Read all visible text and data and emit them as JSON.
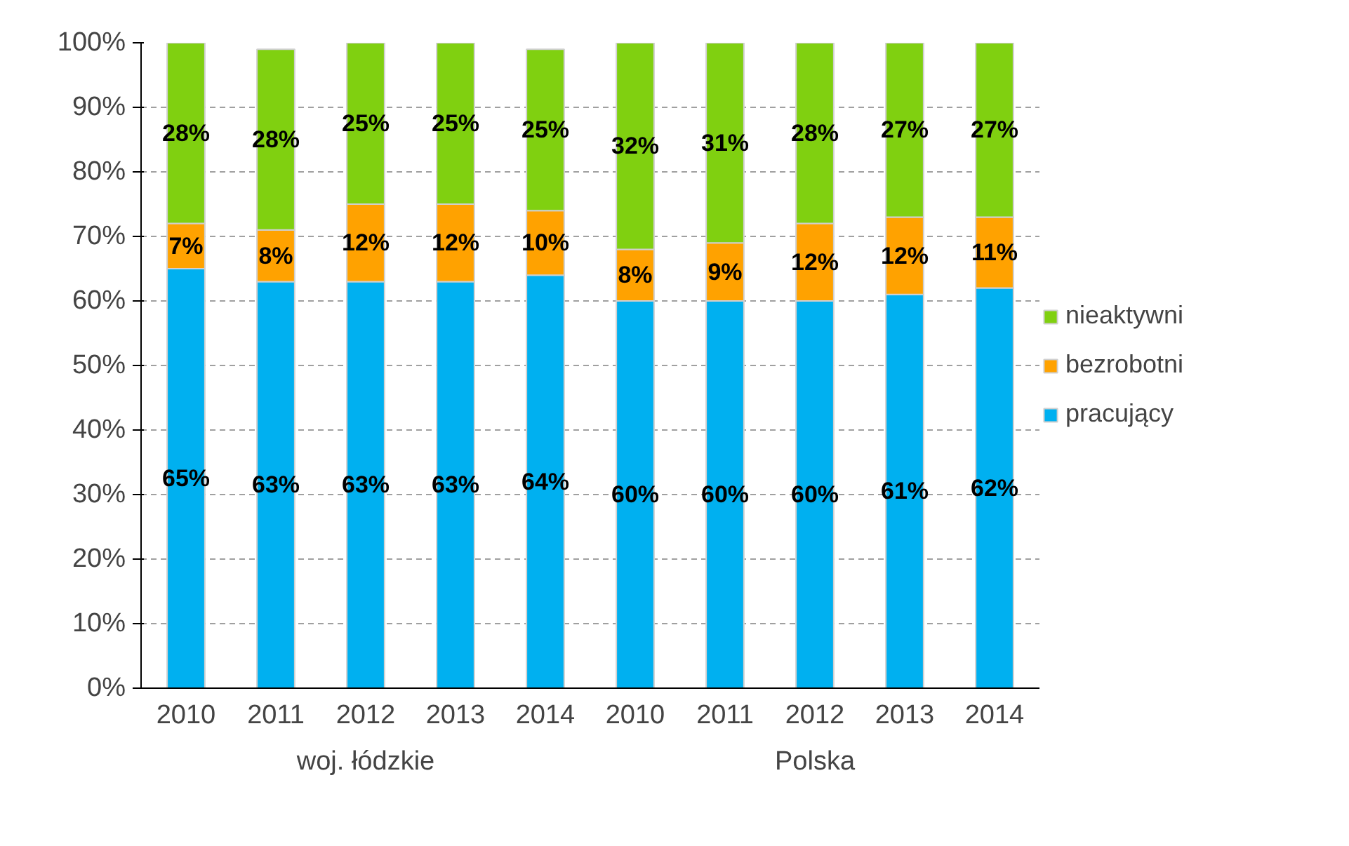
{
  "chart_data": {
    "type": "bar",
    "stacked": true,
    "categories": [
      "2010",
      "2011",
      "2012",
      "2013",
      "2014",
      "2010",
      "2011",
      "2012",
      "2013",
      "2014"
    ],
    "annotations": [
      "woj. łódzkie",
      "Polska"
    ],
    "series": [
      {
        "name": "pracujący",
        "color": "#00b0f0",
        "values": [
          65,
          63,
          63,
          63,
          64,
          60,
          60,
          60,
          61,
          62
        ],
        "value_labels": [
          "65%",
          "63%",
          "63%",
          "63%",
          "64%",
          "60%",
          "60%",
          "60%",
          "61%",
          "62%"
        ]
      },
      {
        "name": "bezrobotni",
        "color": "#ffa200",
        "values": [
          7,
          8,
          12,
          12,
          10,
          8,
          9,
          12,
          12,
          11
        ],
        "value_labels": [
          "7%",
          "8%",
          "12%",
          "12%",
          "10%",
          "8%",
          "9%",
          "12%",
          "12%",
          "11%"
        ]
      },
      {
        "name": "nieaktywni",
        "color": "#80d010",
        "values": [
          28,
          28,
          25,
          25,
          25,
          32,
          31,
          28,
          27,
          27
        ],
        "value_labels": [
          "28%",
          "28%",
          "25%",
          "25%",
          "25%",
          "32%",
          "31%",
          "28%",
          "27%",
          "27%"
        ]
      }
    ],
    "ylim": [
      0,
      100
    ],
    "yticks": [
      {
        "value": 0,
        "label": "0%"
      },
      {
        "value": 10,
        "label": "10%"
      },
      {
        "value": 20,
        "label": "20%"
      },
      {
        "value": 30,
        "label": "30%"
      },
      {
        "value": 40,
        "label": "40%"
      },
      {
        "value": 50,
        "label": "50%"
      },
      {
        "value": 60,
        "label": "60%"
      },
      {
        "value": 70,
        "label": "70%"
      },
      {
        "value": 80,
        "label": "80%"
      },
      {
        "value": 90,
        "label": "90%"
      },
      {
        "value": 100,
        "label": "100%"
      }
    ],
    "grid": "y",
    "legend": "right"
  }
}
